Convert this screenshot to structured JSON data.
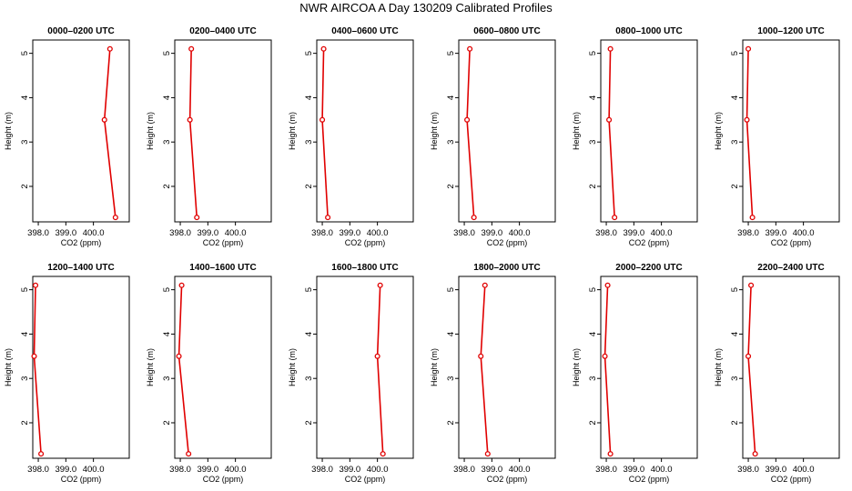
{
  "title": "NWR AIRCOA A  Day 130209  Calibrated Profiles",
  "colors": {
    "line": "#e00000",
    "axis": "#000000"
  },
  "chart_data": {
    "type": "line",
    "xlabel": "CO2 (ppm)",
    "ylabel": "Height (m)",
    "xlim": [
      397.8,
      401.3
    ],
    "ylim": [
      1.2,
      5.3
    ],
    "xticks": [
      398.0,
      399.0,
      400.0
    ],
    "xtick_labels": [
      "398.0",
      "399.0",
      "400.0"
    ],
    "yticks": [
      2,
      3,
      4,
      5
    ],
    "ytick_labels": [
      "2",
      "3",
      "4",
      "5"
    ],
    "heights": [
      5.1,
      3.5,
      1.3
    ],
    "panels": [
      {
        "title": "0000–0200 UTC",
        "values": [
          400.6,
          400.4,
          400.8
        ]
      },
      {
        "title": "0200–0400 UTC",
        "values": [
          398.4,
          398.35,
          398.6
        ]
      },
      {
        "title": "0400–0600 UTC",
        "values": [
          398.05,
          398.0,
          398.2
        ]
      },
      {
        "title": "0600–0800 UTC",
        "values": [
          398.2,
          398.1,
          398.35
        ]
      },
      {
        "title": "0800–1000 UTC",
        "values": [
          398.15,
          398.1,
          398.3
        ]
      },
      {
        "title": "1000–1200 UTC",
        "values": [
          398.0,
          397.95,
          398.15
        ]
      },
      {
        "title": "1200–1400 UTC",
        "values": [
          397.9,
          397.85,
          398.1
        ]
      },
      {
        "title": "1400–1600 UTC",
        "values": [
          398.05,
          397.95,
          398.3
        ]
      },
      {
        "title": "1600–1800 UTC",
        "values": [
          400.1,
          400.0,
          400.2
        ]
      },
      {
        "title": "1800–2000 UTC",
        "values": [
          398.75,
          398.6,
          398.85
        ]
      },
      {
        "title": "2000–2200 UTC",
        "values": [
          398.05,
          397.95,
          398.15
        ]
      },
      {
        "title": "2200–2400 UTC",
        "values": [
          398.1,
          398.0,
          398.25
        ]
      }
    ]
  }
}
